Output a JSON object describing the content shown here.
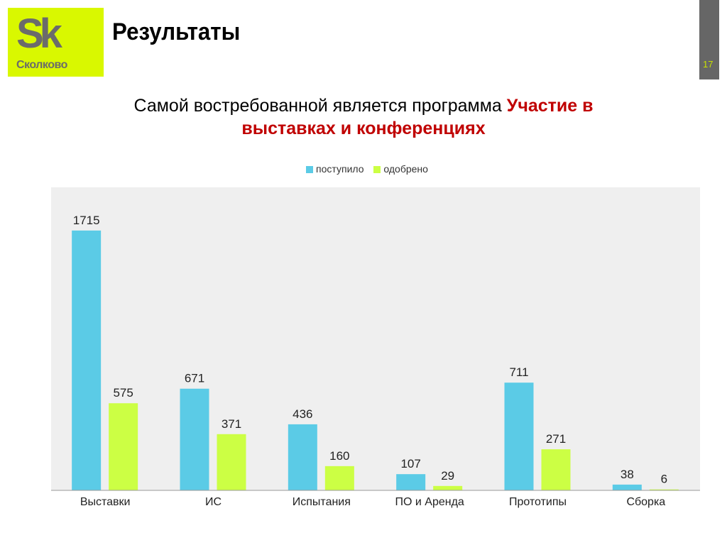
{
  "logo": {
    "mark": "Sk",
    "name": "Сколково"
  },
  "header": {
    "title": "Результаты",
    "page_number": "17"
  },
  "subtitle": {
    "text": "Самой востребованной  является программа ",
    "highlight": "Участие в выставках и конференциях"
  },
  "colors": {
    "received": "#5bcbe6",
    "approved": "#ccff44",
    "plot_bg": "#efefef",
    "highlight": "#c00000"
  },
  "chart_data": {
    "type": "bar",
    "categories": [
      "Выставки",
      "ИС",
      "Испытания",
      "ПО и Аренда",
      "Прототипы",
      "Сборка"
    ],
    "series": [
      {
        "name": "поступило",
        "values": [
          1715,
          671,
          436,
          107,
          711,
          38
        ]
      },
      {
        "name": "одобрено",
        "values": [
          575,
          371,
          160,
          29,
          271,
          6
        ]
      }
    ],
    "ylim": [
      0,
      2000
    ],
    "grid": false,
    "legend": "top",
    "data_labels": true
  }
}
